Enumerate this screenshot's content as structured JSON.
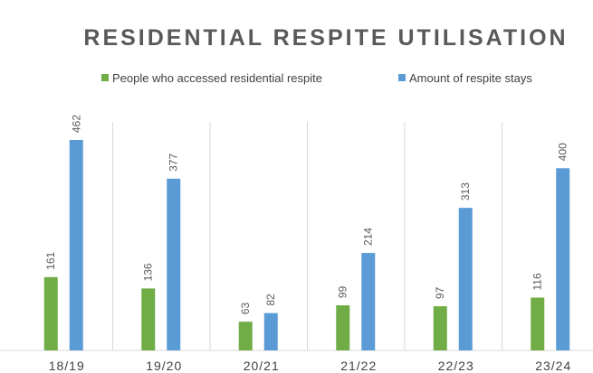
{
  "chart_data": {
    "type": "bar",
    "title": "RESIDENTIAL RESPITE UTILISATION",
    "categories": [
      "18/19",
      "19/20",
      "20/21",
      "21/22",
      "22/23",
      "23/24"
    ],
    "series": [
      {
        "name": "People who accessed residential respite",
        "color": "#70ad47",
        "values": [
          161,
          136,
          63,
          99,
          97,
          116
        ]
      },
      {
        "name": "Amount of respite stays",
        "color": "#5b9bd5",
        "values": [
          462,
          377,
          82,
          214,
          313,
          400
        ]
      }
    ],
    "legend": "top",
    "category_grid": true
  }
}
